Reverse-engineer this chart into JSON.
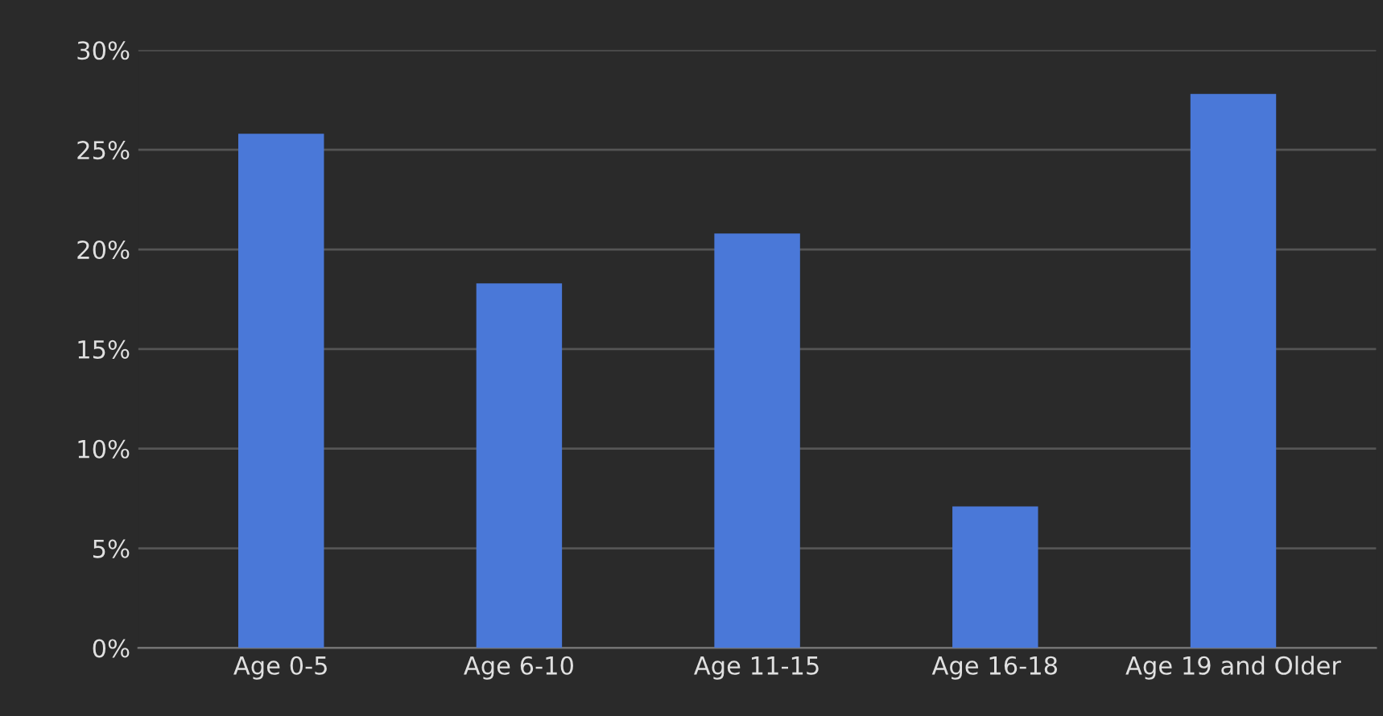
{
  "chart_data": {
    "type": "bar",
    "categories": [
      "Age 0-5",
      "Age 6-10",
      "Age 11-15",
      "Age 16-18",
      "Age 19 and Older"
    ],
    "values": [
      25.8,
      18.3,
      20.8,
      7.1,
      27.8
    ],
    "color": "#4a78d8",
    "ylim": [
      0,
      30
    ],
    "yticks": [
      {
        "value": 0,
        "label": "0%"
      },
      {
        "value": 5,
        "label": "5%"
      },
      {
        "value": 10,
        "label": "10%"
      },
      {
        "value": 15,
        "label": "15%"
      },
      {
        "value": 20,
        "label": "20%"
      },
      {
        "value": 25,
        "label": "25%"
      },
      {
        "value": 30,
        "label": "30%"
      }
    ],
    "grid": "y"
  }
}
